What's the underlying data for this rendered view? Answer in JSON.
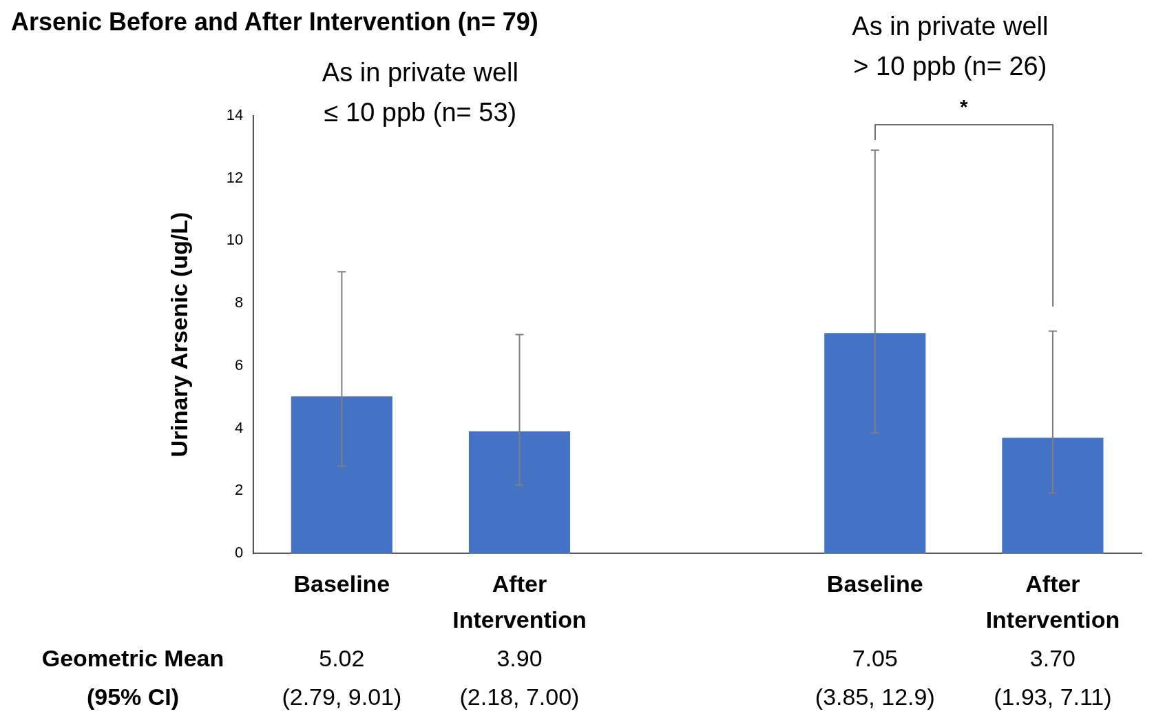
{
  "chart_data": {
    "type": "bar",
    "title": "Arsenic Before and After Intervention (n= 79)",
    "ylabel": "Urinary Arsenic (ug/L)",
    "categories": [
      "Baseline",
      "After Intervention",
      null,
      "Baseline",
      "After Intervention"
    ],
    "values": [
      5.02,
      3.9,
      null,
      7.05,
      3.7
    ],
    "errors": [
      [
        2.79,
        9.01
      ],
      [
        2.18,
        7.0
      ],
      null,
      [
        3.85,
        12.9
      ],
      [
        1.93,
        7.11
      ]
    ],
    "value_labels": [
      "5.02\n(2.79, 9.01)",
      "3.90\n(2.18, 7.00)",
      null,
      "7.05\n(3.85, 12.9)",
      "3.70\n(1.93, 7.11)"
    ],
    "color": "#4472c4",
    "ylim": [
      0,
      14
    ],
    "yticks": [
      0,
      2,
      4,
      6,
      8,
      10,
      12,
      14
    ],
    "grid": false,
    "legend": false,
    "annotations": [
      "As in private well\n≤ 10 ppb (n= 53)",
      "As in private well\n> 10 ppb (n= 26)",
      "*",
      "Geometric Mean\n(95% CI)"
    ]
  }
}
